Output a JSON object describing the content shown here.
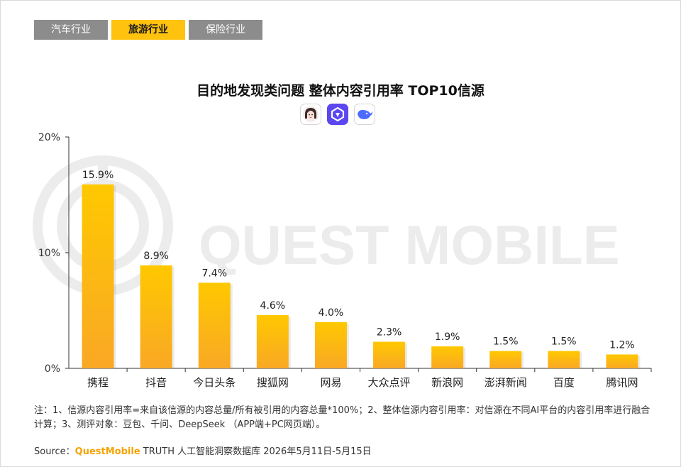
{
  "tabs": [
    {
      "label": "汽车行业",
      "active": false
    },
    {
      "label": "旅游行业",
      "active": true
    },
    {
      "label": "保险行业",
      "active": false
    }
  ],
  "ai_icons": [
    "doubao-avatar-icon",
    "qianwen-logo-icon",
    "deepseek-whale-icon"
  ],
  "watermark": "QUEST MOBILE",
  "note": "注：1、信源内容引用率=来自该信源的内容总量/所有被引用的内容总量*100%；2、整体信源内容引用率：对信源在不同AI平台的内容引用率进行融合计算；3、测评对象：豆包、千问、DeepSeek （APP端+PC网页端）。",
  "source": {
    "prefix": "Source：",
    "brand": "QuestMobile",
    "text": " TRUTH 人工智能洞察数据库 2026年5月11日-5月15日"
  },
  "colors": {
    "accent": "#ffc20e",
    "bar_top": "#ffc800",
    "bar_bottom": "#f9a825",
    "tab_inactive": "#8c8c8c"
  },
  "chart_data": {
    "type": "bar",
    "title": "目的地发现类问题 整体内容引用率 TOP10信源",
    "categories": [
      "携程",
      "抖音",
      "今日头条",
      "搜狐网",
      "网易",
      "大众点评",
      "新浪网",
      "澎湃新闻",
      "百度",
      "腾讯网"
    ],
    "values": [
      15.9,
      8.9,
      7.4,
      4.6,
      4.0,
      2.3,
      1.9,
      1.5,
      1.5,
      1.2
    ],
    "value_labels": [
      "15.9%",
      "8.9%",
      "7.4%",
      "4.6%",
      "4.0%",
      "2.3%",
      "1.9%",
      "1.5%",
      "1.5%",
      "1.2%"
    ],
    "yticks": [
      "0%",
      "10%",
      "20%"
    ],
    "ytick_values": [
      0,
      10,
      20
    ],
    "ylim": [
      0,
      20
    ],
    "xlabel": "",
    "ylabel": "",
    "grid": false,
    "legend": "none"
  }
}
